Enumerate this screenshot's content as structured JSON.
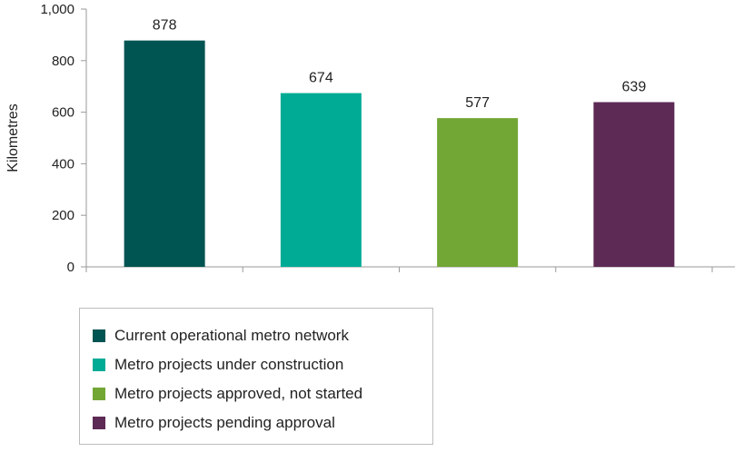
{
  "chart_data": {
    "type": "bar",
    "categories": [
      "Current operational metro network",
      "Metro projects under construction",
      "Metro projects approved, not started",
      "Metro projects pending approval"
    ],
    "values": [
      878,
      674,
      577,
      639
    ],
    "data_labels": [
      "878",
      "674",
      "577",
      "639"
    ],
    "colors": [
      "#005452",
      "#00ab96",
      "#72a635",
      "#5d2955"
    ],
    "ylabel": "Kilometres",
    "ylim": [
      0,
      1000
    ],
    "yticks": [
      0,
      200,
      400,
      600,
      800,
      1000
    ],
    "ytick_labels": [
      "0",
      "200",
      "400",
      "600",
      "800",
      "1,000"
    ],
    "grid": false,
    "legend": {
      "placement": "bottom-left"
    }
  }
}
